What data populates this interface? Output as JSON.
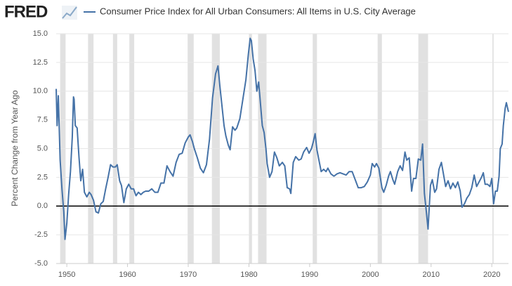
{
  "logo": "FRED",
  "chart_data": {
    "type": "line",
    "y_label": "Percent Change from Year Ago",
    "xlim": [
      1948.25,
      2022.75
    ],
    "xticks": [
      1950,
      1960,
      1970,
      1980,
      1990,
      2000,
      2010,
      2020
    ],
    "ylim": [
      -5,
      15
    ],
    "yticks": [
      {
        "value": -5,
        "label": "-5.0"
      },
      -2.5,
      {
        "value": 0,
        "label": "0.0"
      },
      2.5,
      {
        "value": 5,
        "label": "5.0"
      },
      7.5,
      {
        "value": 10,
        "label": "10.0"
      },
      12.5,
      {
        "value": 15,
        "label": "15.0"
      }
    ],
    "grid": true,
    "reference_line": 0,
    "recession_color": "#e1e1e1",
    "recessions": [
      [
        1948.9,
        1949.8
      ],
      [
        1953.5,
        1954.4
      ],
      [
        1957.6,
        1958.3
      ],
      [
        1960.3,
        1961.1
      ],
      [
        1969.9,
        1970.9
      ],
      [
        1973.9,
        1975.2
      ],
      [
        1980.0,
        1980.5
      ],
      [
        1981.5,
        1982.9
      ],
      [
        1990.5,
        1991.2
      ],
      [
        2001.2,
        2001.9
      ],
      [
        2007.9,
        2009.5
      ],
      [
        2020.1,
        2020.3
      ]
    ],
    "series": [
      {
        "name": "Consumer Price Index for All Urban Consumers: All Items in U.S. City Average",
        "color": "#4572a7",
        "x": [
          1948.25,
          1948.4,
          1948.6,
          1948.9,
          1949.2,
          1949.5,
          1949.7,
          1950.0,
          1950.3,
          1950.6,
          1950.9,
          1951.1,
          1951.2,
          1951.4,
          1951.7,
          1952.0,
          1952.3,
          1952.6,
          1952.9,
          1953.3,
          1953.7,
          1954.0,
          1954.4,
          1954.8,
          1955.2,
          1955.6,
          1956.0,
          1956.4,
          1956.8,
          1957.2,
          1957.6,
          1958.0,
          1958.3,
          1958.7,
          1959.0,
          1959.4,
          1959.8,
          1960.2,
          1960.6,
          1961.0,
          1961.4,
          1961.8,
          1962.2,
          1962.6,
          1963.0,
          1963.5,
          1964.0,
          1964.5,
          1965.0,
          1965.5,
          1966.0,
          1966.5,
          1967.0,
          1967.5,
          1968.0,
          1968.5,
          1969.0,
          1969.5,
          1970.0,
          1970.3,
          1970.7,
          1971.0,
          1971.5,
          1972.0,
          1972.5,
          1973.0,
          1973.5,
          1974.0,
          1974.5,
          1974.9,
          1975.2,
          1975.5,
          1975.9,
          1976.2,
          1976.6,
          1976.9,
          1977.3,
          1977.7,
          1978.0,
          1978.5,
          1979.0,
          1979.5,
          1979.9,
          1980.2,
          1980.4,
          1980.7,
          1981.0,
          1981.3,
          1981.6,
          1981.9,
          1982.2,
          1982.5,
          1982.8,
          1983.0,
          1983.4,
          1983.8,
          1984.2,
          1984.6,
          1985.0,
          1985.5,
          1985.9,
          1986.3,
          1986.7,
          1986.9,
          1987.3,
          1987.7,
          1988.2,
          1988.6,
          1989.0,
          1989.5,
          1989.9,
          1990.3,
          1990.6,
          1990.9,
          1991.2,
          1991.6,
          1991.9,
          1992.3,
          1992.7,
          1993.0,
          1993.5,
          1994.0,
          1994.5,
          1995.0,
          1995.5,
          1996.0,
          1996.5,
          1997.0,
          1997.5,
          1998.0,
          1998.5,
          1999.0,
          1999.5,
          2000.0,
          2000.3,
          2000.7,
          2001.0,
          2001.4,
          2001.9,
          2002.2,
          2002.6,
          2003.0,
          2003.3,
          2003.7,
          2004.0,
          2004.5,
          2004.9,
          2005.3,
          2005.7,
          2006.0,
          2006.4,
          2006.8,
          2007.1,
          2007.5,
          2007.9,
          2008.3,
          2008.6,
          2008.9,
          2009.2,
          2009.5,
          2009.9,
          2010.2,
          2010.6,
          2010.9,
          2011.3,
          2011.7,
          2012.0,
          2012.4,
          2012.8,
          2013.2,
          2013.6,
          2014.0,
          2014.4,
          2014.8,
          2015.1,
          2015.5,
          2015.9,
          2016.3,
          2016.7,
          2017.1,
          2017.5,
          2017.9,
          2018.3,
          2018.6,
          2018.9,
          2019.3,
          2019.7,
          2020.0,
          2020.3,
          2020.6,
          2020.9,
          2021.2,
          2021.4,
          2021.7,
          2021.9,
          2022.2,
          2022.4,
          2022.75
        ],
        "values": [
          10.2,
          7.0,
          9.6,
          4.0,
          1.5,
          -0.5,
          -2.9,
          -1.5,
          1.0,
          3.0,
          6.0,
          9.5,
          9.3,
          7.0,
          6.8,
          4.3,
          2.2,
          3.2,
          1.2,
          0.8,
          1.2,
          1.0,
          0.5,
          -0.5,
          -0.6,
          0.2,
          0.4,
          1.5,
          2.5,
          3.6,
          3.4,
          3.4,
          3.6,
          2.2,
          1.8,
          0.3,
          1.5,
          1.9,
          1.5,
          1.5,
          0.9,
          1.2,
          1.0,
          1.2,
          1.3,
          1.3,
          1.5,
          1.2,
          1.2,
          2.0,
          2.0,
          3.5,
          3.0,
          2.6,
          3.8,
          4.5,
          4.6,
          5.5,
          6.0,
          6.2,
          5.6,
          5.0,
          4.2,
          3.3,
          2.9,
          3.6,
          5.8,
          9.4,
          11.5,
          12.2,
          10.5,
          9.0,
          7.0,
          6.1,
          5.3,
          4.9,
          6.9,
          6.6,
          6.8,
          7.6,
          9.3,
          11.0,
          13.2,
          14.6,
          14.4,
          12.8,
          11.8,
          10.0,
          10.8,
          8.9,
          7.0,
          6.4,
          5.0,
          3.7,
          2.5,
          3.0,
          4.7,
          4.2,
          3.5,
          3.8,
          3.5,
          1.6,
          1.5,
          1.1,
          3.8,
          4.3,
          4.0,
          4.1,
          4.7,
          5.1,
          4.6,
          5.0,
          5.6,
          6.3,
          4.9,
          3.8,
          3.0,
          3.2,
          3.0,
          3.3,
          2.8,
          2.6,
          2.8,
          2.9,
          2.8,
          2.7,
          3.0,
          3.0,
          2.3,
          1.6,
          1.6,
          1.7,
          2.1,
          2.7,
          3.7,
          3.4,
          3.7,
          3.3,
          1.6,
          1.2,
          1.8,
          2.6,
          3.0,
          2.3,
          1.9,
          3.0,
          3.5,
          3.1,
          4.7,
          4.0,
          4.2,
          1.3,
          2.4,
          2.4,
          4.1,
          4.0,
          5.4,
          1.1,
          -0.4,
          -2.0,
          1.8,
          2.3,
          1.2,
          1.5,
          3.2,
          3.8,
          2.9,
          1.7,
          2.2,
          1.5,
          2.0,
          1.6,
          2.1,
          1.3,
          -0.1,
          0.2,
          0.7,
          1.0,
          1.6,
          2.7,
          1.7,
          2.1,
          2.5,
          2.9,
          1.9,
          1.9,
          1.7,
          2.4,
          0.2,
          1.3,
          1.3,
          2.6,
          5.0,
          5.4,
          7.0,
          8.5,
          9.0,
          8.2
        ]
      }
    ]
  }
}
